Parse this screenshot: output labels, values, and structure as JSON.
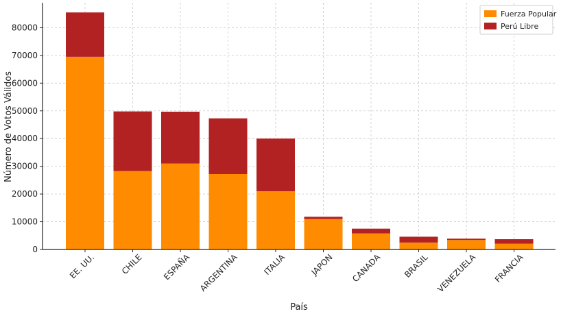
{
  "chart_data": {
    "type": "bar",
    "stacked": true,
    "categories": [
      "EE. UU.",
      "CHILE",
      "ESPAÑA",
      "ARGENTINA",
      "ITALIA",
      "JAPON",
      "CANADA",
      "BRASIL",
      "VENEZUELA",
      "FRANCIA"
    ],
    "series": [
      {
        "name": "Fuerza Popular",
        "color": "#ff8c00",
        "values": [
          69500,
          28300,
          31000,
          27200,
          21000,
          11000,
          5800,
          2500,
          3400,
          2100
        ]
      },
      {
        "name": "Perú Libre",
        "color": "#b22222",
        "values": [
          16000,
          21500,
          18700,
          20100,
          19000,
          800,
          1700,
          2100,
          500,
          1600
        ]
      }
    ],
    "xlabel": "País",
    "ylabel": "Número de Votos Válidos",
    "ylim": [
      0,
      89000
    ],
    "yticks": [
      0,
      10000,
      20000,
      30000,
      40000,
      50000,
      60000,
      70000,
      80000
    ],
    "grid": true,
    "legend_position": "top-right"
  }
}
